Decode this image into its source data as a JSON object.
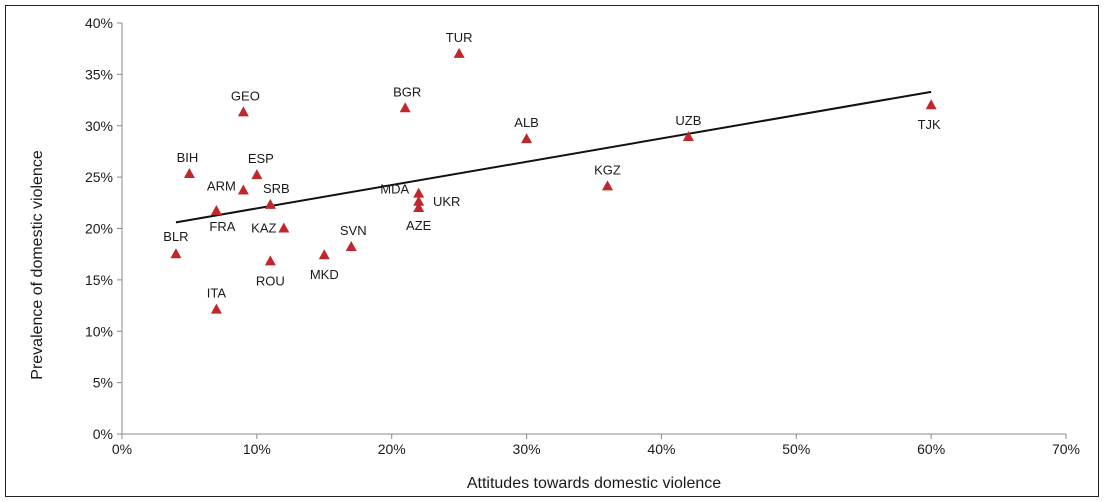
{
  "chart_data": {
    "type": "scatter",
    "title": "",
    "xlabel": "Attitudes towards domestic violence",
    "ylabel": "Prevalence of domestic violence",
    "xlim": [
      0,
      70
    ],
    "ylim": [
      0,
      40
    ],
    "x_ticks": [
      "0%",
      "10%",
      "20%",
      "30%",
      "40%",
      "50%",
      "60%",
      "70%"
    ],
    "y_ticks": [
      "0%",
      "5%",
      "10%",
      "15%",
      "20%",
      "25%",
      "30%",
      "35%",
      "40%"
    ],
    "grid": false,
    "marker": "triangle",
    "marker_color": "#c0272d",
    "points": [
      {
        "label": "TUR",
        "x": 25,
        "y": 37
      },
      {
        "label": "BGR",
        "x": 21,
        "y": 31.7
      },
      {
        "label": "GEO",
        "x": 9,
        "y": 31.3
      },
      {
        "label": "ALB",
        "x": 30,
        "y": 28.7
      },
      {
        "label": "UZB",
        "x": 42,
        "y": 28.9
      },
      {
        "label": "TJK",
        "x": 60,
        "y": 32
      },
      {
        "label": "BIH",
        "x": 5,
        "y": 25.3
      },
      {
        "label": "ESP",
        "x": 10,
        "y": 25.2
      },
      {
        "label": "KGZ",
        "x": 36,
        "y": 24.1
      },
      {
        "label": "ARM",
        "x": 9,
        "y": 23.7
      },
      {
        "label": "MDA",
        "x": 22,
        "y": 23.4
      },
      {
        "label": "UKR",
        "x": 22,
        "y": 22.6
      },
      {
        "label": "AZE",
        "x": 22,
        "y": 22
      },
      {
        "label": "SRB",
        "x": 11,
        "y": 22.3
      },
      {
        "label": "FRA",
        "x": 7,
        "y": 21.7
      },
      {
        "label": "KAZ",
        "x": 12,
        "y": 20
      },
      {
        "label": "SVN",
        "x": 17,
        "y": 18.2
      },
      {
        "label": "BLR",
        "x": 4,
        "y": 17.5
      },
      {
        "label": "MKD",
        "x": 15,
        "y": 17.4
      },
      {
        "label": "ROU",
        "x": 11,
        "y": 16.8
      },
      {
        "label": "ITA",
        "x": 7,
        "y": 12.1
      }
    ],
    "trendline": {
      "x": [
        4,
        60
      ],
      "y": [
        20.6,
        33.3
      ]
    }
  }
}
